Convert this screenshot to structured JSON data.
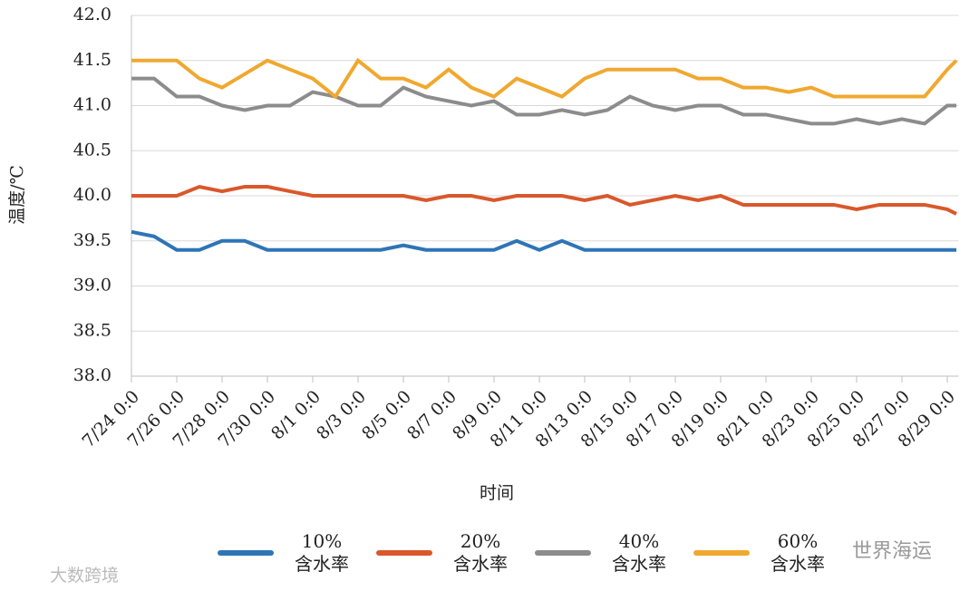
{
  "chart_data": {
    "type": "line",
    "xlabel": "时间",
    "ylabel": "温度/℃",
    "x": [
      0,
      1,
      2,
      3,
      4,
      5,
      6,
      7,
      8,
      9,
      10,
      11,
      12,
      13,
      14,
      15,
      16,
      17,
      18,
      19,
      20,
      21,
      22,
      23,
      24,
      25,
      26,
      27,
      28,
      29,
      30,
      31,
      32,
      33,
      34,
      35,
      36,
      36.4
    ],
    "xlim": [
      0,
      36.5
    ],
    "xticks": [
      {
        "value": 0,
        "label": "7/24 0:0"
      },
      {
        "value": 2,
        "label": "7/26 0:0"
      },
      {
        "value": 4,
        "label": "7/28 0:0"
      },
      {
        "value": 6,
        "label": "7/30 0:0"
      },
      {
        "value": 8,
        "label": "8/1 0:0"
      },
      {
        "value": 10,
        "label": "8/3 0:0"
      },
      {
        "value": 12,
        "label": "8/5 0:0"
      },
      {
        "value": 14,
        "label": "8/7 0:0"
      },
      {
        "value": 16,
        "label": "8/9 0:0"
      },
      {
        "value": 18,
        "label": "8/11 0:0"
      },
      {
        "value": 20,
        "label": "8/13 0:0"
      },
      {
        "value": 22,
        "label": "8/15 0:0"
      },
      {
        "value": 24,
        "label": "8/17 0:0"
      },
      {
        "value": 26,
        "label": "8/19 0:0"
      },
      {
        "value": 28,
        "label": "8/21 0:0"
      },
      {
        "value": 30,
        "label": "8/23 0:0"
      },
      {
        "value": 32,
        "label": "8/25 0:0"
      },
      {
        "value": 34,
        "label": "8/27 0:0"
      },
      {
        "value": 36,
        "label": "8/29 0:0"
      }
    ],
    "ylim": [
      38,
      42
    ],
    "yticks": [
      {
        "value": 38,
        "label": "38.0"
      },
      {
        "value": 38.5,
        "label": "38.5"
      },
      {
        "value": 39,
        "label": "39.0"
      },
      {
        "value": 39.5,
        "label": "39.5"
      },
      {
        "value": 40,
        "label": "40.0"
      },
      {
        "value": 40.5,
        "label": "40.5"
      },
      {
        "value": 41,
        "label": "41.0"
      },
      {
        "value": 41.5,
        "label": "41.5"
      },
      {
        "value": 42,
        "label": "42.0"
      }
    ],
    "grid": true,
    "legend": "bottom",
    "series": [
      {
        "name": "10%\n含水率",
        "color": "#2e75b6",
        "values": [
          39.6,
          39.55,
          39.4,
          39.4,
          39.5,
          39.5,
          39.4,
          39.4,
          39.4,
          39.4,
          39.4,
          39.4,
          39.45,
          39.4,
          39.4,
          39.4,
          39.4,
          39.5,
          39.4,
          39.5,
          39.4,
          39.4,
          39.4,
          39.4,
          39.4,
          39.4,
          39.4,
          39.4,
          39.4,
          39.4,
          39.4,
          39.4,
          39.4,
          39.4,
          39.4,
          39.4,
          39.4,
          39.4
        ]
      },
      {
        "name": "20%\n含水率",
        "color": "#d9582b",
        "values": [
          40.0,
          40.0,
          40.0,
          40.1,
          40.05,
          40.1,
          40.1,
          40.05,
          40.0,
          40.0,
          40.0,
          40.0,
          40.0,
          39.95,
          40.0,
          40.0,
          39.95,
          40.0,
          40.0,
          40.0,
          39.95,
          40.0,
          39.9,
          39.95,
          40.0,
          39.95,
          40.0,
          39.9,
          39.9,
          39.9,
          39.9,
          39.9,
          39.85,
          39.9,
          39.9,
          39.9,
          39.85,
          39.8
        ]
      },
      {
        "name": "40%\n含水率",
        "color": "#8c8c8c",
        "values": [
          41.3,
          41.3,
          41.1,
          41.1,
          41.0,
          40.95,
          41.0,
          41.0,
          41.15,
          41.1,
          41.0,
          41.0,
          41.2,
          41.1,
          41.05,
          41.0,
          41.05,
          40.9,
          40.9,
          40.95,
          40.9,
          40.95,
          41.1,
          41.0,
          40.95,
          41.0,
          41.0,
          40.9,
          40.9,
          40.85,
          40.8,
          40.8,
          40.85,
          40.8,
          40.85,
          40.8,
          41.0,
          41.0
        ]
      },
      {
        "name": "60%\n含水率",
        "color": "#f0a830",
        "values": [
          41.5,
          41.5,
          41.5,
          41.3,
          41.2,
          41.35,
          41.5,
          41.4,
          41.3,
          41.1,
          41.5,
          41.3,
          41.3,
          41.2,
          41.4,
          41.2,
          41.1,
          41.3,
          41.2,
          41.1,
          41.3,
          41.4,
          41.4,
          41.4,
          41.4,
          41.3,
          41.3,
          41.2,
          41.2,
          41.15,
          41.2,
          41.1,
          41.1,
          41.1,
          41.1,
          41.1,
          41.4,
          41.5
        ]
      }
    ]
  },
  "watermarks": [
    "世界海运",
    "大数跨境"
  ]
}
